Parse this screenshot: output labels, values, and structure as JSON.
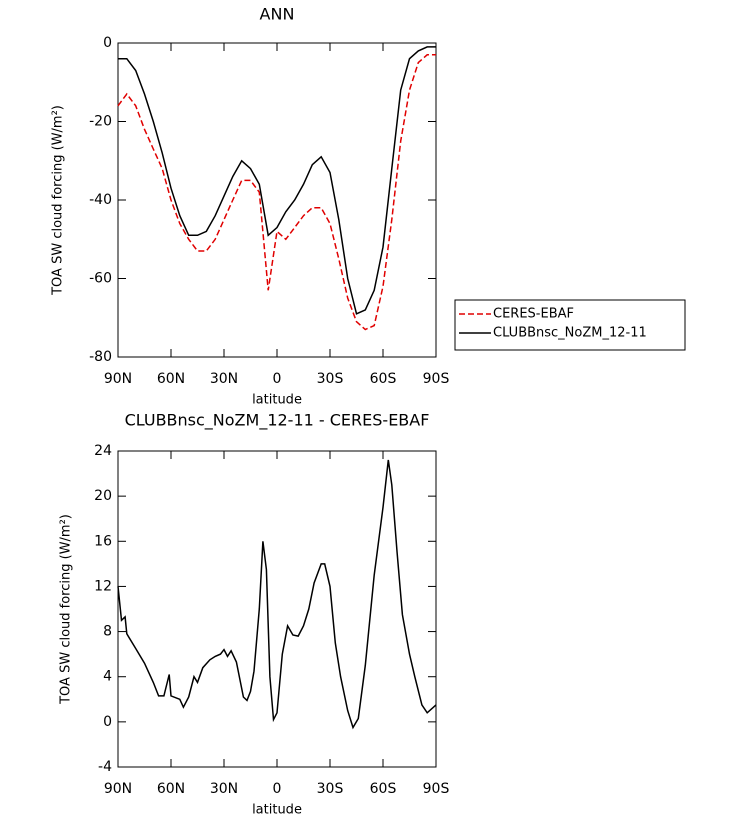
{
  "chart_data": [
    {
      "type": "line",
      "title": "ANN",
      "x_label": "latitude",
      "y_label": "TOA SW cloud forcing (W/m²)",
      "x": [
        90,
        85,
        80,
        75,
        70,
        65,
        60,
        55,
        50,
        45,
        40,
        35,
        30,
        25,
        20,
        15,
        10,
        5,
        0,
        -5,
        -10,
        -15,
        -20,
        -25,
        -30,
        -35,
        -40,
        -45,
        -50,
        -55,
        -60,
        -65,
        -70,
        -75,
        -80,
        -85,
        -90
      ],
      "series": [
        {
          "name": "CERES-EBAF",
          "color": "#e00000",
          "dashed": true,
          "values": [
            -16,
            -13,
            -16,
            -22,
            -27,
            -32,
            -40,
            -46,
            -50,
            -53,
            -53,
            -50,
            -45,
            -40,
            -35,
            -35,
            -38,
            -63,
            -48,
            -50,
            -47,
            -44,
            -42,
            -42,
            -46,
            -55,
            -65,
            -71,
            -73,
            -72,
            -62,
            -45,
            -25,
            -12,
            -5,
            -3,
            -3
          ]
        },
        {
          "name": "CLUBBnsc_NoZM_12-11",
          "color": "#000000",
          "dashed": false,
          "values": [
            -4,
            -4,
            -7,
            -13,
            -20,
            -28,
            -37,
            -44,
            -49,
            -49,
            -48,
            -44,
            -39,
            -34,
            -30,
            -32,
            -36,
            -49,
            -47,
            -43,
            -40,
            -36,
            -31,
            -29,
            -33,
            -45,
            -60,
            -69,
            -68,
            -63,
            -52,
            -32,
            -12,
            -4,
            -2,
            -1,
            -1
          ]
        }
      ],
      "xlim": [
        90,
        -90
      ],
      "xticks": [
        {
          "value": 90,
          "label": "90N"
        },
        {
          "value": 60,
          "label": "60N"
        },
        {
          "value": 30,
          "label": "30N"
        },
        0,
        {
          "value": -30,
          "label": "30S"
        },
        {
          "value": -60,
          "label": "60S"
        },
        {
          "value": -90,
          "label": "90S"
        }
      ],
      "ylim": [
        -80,
        0
      ],
      "yticks": [
        -80,
        -60,
        -40,
        -20,
        0
      ],
      "legend": "right"
    },
    {
      "type": "line",
      "title": "CLUBBnsc_NoZM_12-11 - CERES-EBAF",
      "x_label": "latitude",
      "y_label": "TOA SW cloud forcing (W/m²)",
      "x": [
        90,
        88,
        86,
        85,
        80,
        75,
        70,
        67,
        64,
        61,
        60,
        55,
        53,
        50,
        47,
        45,
        42,
        38,
        35,
        32,
        30,
        28,
        26,
        23,
        19,
        17,
        15,
        13,
        10,
        8,
        6,
        4,
        2,
        0,
        -3,
        -6,
        -9,
        -12,
        -15,
        -18,
        -21,
        -25,
        -27,
        -30,
        -33,
        -36,
        -40,
        -43,
        -46,
        -50,
        -55,
        -60,
        -63,
        -65,
        -68,
        -71,
        -75,
        -78,
        -82,
        -85,
        -90
      ],
      "series": [
        {
          "color": "#000000",
          "dashed": false,
          "values": [
            12,
            9,
            9.3,
            7.8,
            6.5,
            5.2,
            3.5,
            2.3,
            2.3,
            4.2,
            2.3,
            2.0,
            1.3,
            2.2,
            4.0,
            3.5,
            4.8,
            5.5,
            5.8,
            6.0,
            6.4,
            5.8,
            6.3,
            5.3,
            2.2,
            1.9,
            2.7,
            4.5,
            10,
            16,
            13.5,
            4,
            0.2,
            0.8,
            6,
            8.5,
            7.7,
            7.6,
            8.5,
            10,
            12.3,
            14,
            14,
            12,
            7,
            4,
            1,
            -0.5,
            0.3,
            5,
            13,
            19,
            23.2,
            21,
            15,
            9.5,
            6,
            4,
            1.5,
            0.8,
            1.5
          ]
        }
      ],
      "xlim": [
        90,
        -90
      ],
      "xticks": [
        {
          "value": 90,
          "label": "90N"
        },
        {
          "value": 60,
          "label": "60N"
        },
        {
          "value": 30,
          "label": "30N"
        },
        0,
        {
          "value": -30,
          "label": "30S"
        },
        {
          "value": -60,
          "label": "60S"
        },
        {
          "value": -90,
          "label": "90S"
        }
      ],
      "ylim": [
        -4,
        24
      ],
      "yticks": [
        -4,
        0,
        4,
        8,
        12,
        16,
        20,
        24
      ]
    }
  ]
}
